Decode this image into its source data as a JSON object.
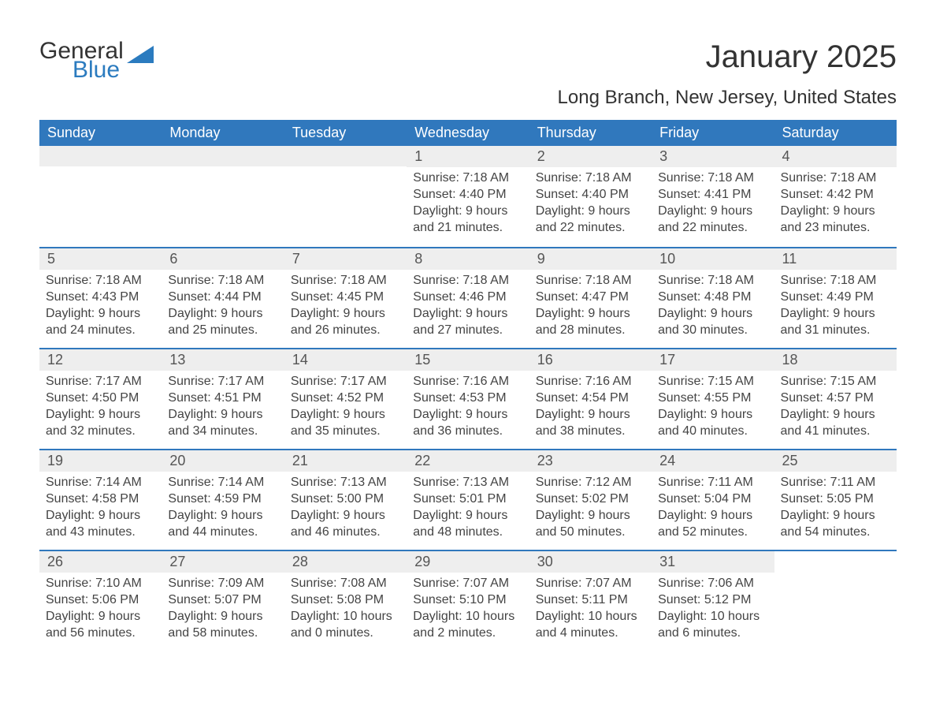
{
  "logo": {
    "text1": "General",
    "text2": "Blue"
  },
  "title": "January 2025",
  "subtitle": "Long Branch, New Jersey, United States",
  "colors": {
    "header_bg": "#3078bd",
    "header_text": "#ffffff",
    "daynum_bg": "#eeeeee",
    "rule": "#3078bd",
    "body_text": "#444444",
    "logo_accent": "#2b7bbf"
  },
  "typography": {
    "title_fontsize": 40,
    "subtitle_fontsize": 24,
    "dow_fontsize": 18,
    "body_fontsize": 16
  },
  "days_of_week": [
    "Sunday",
    "Monday",
    "Tuesday",
    "Wednesday",
    "Thursday",
    "Friday",
    "Saturday"
  ],
  "weeks": [
    [
      {
        "day": "",
        "lines": []
      },
      {
        "day": "",
        "lines": []
      },
      {
        "day": "",
        "lines": []
      },
      {
        "day": "1",
        "lines": [
          "Sunrise: 7:18 AM",
          "Sunset: 4:40 PM",
          "Daylight: 9 hours",
          "and 21 minutes."
        ]
      },
      {
        "day": "2",
        "lines": [
          "Sunrise: 7:18 AM",
          "Sunset: 4:40 PM",
          "Daylight: 9 hours",
          "and 22 minutes."
        ]
      },
      {
        "day": "3",
        "lines": [
          "Sunrise: 7:18 AM",
          "Sunset: 4:41 PM",
          "Daylight: 9 hours",
          "and 22 minutes."
        ]
      },
      {
        "day": "4",
        "lines": [
          "Sunrise: 7:18 AM",
          "Sunset: 4:42 PM",
          "Daylight: 9 hours",
          "and 23 minutes."
        ]
      }
    ],
    [
      {
        "day": "5",
        "lines": [
          "Sunrise: 7:18 AM",
          "Sunset: 4:43 PM",
          "Daylight: 9 hours",
          "and 24 minutes."
        ]
      },
      {
        "day": "6",
        "lines": [
          "Sunrise: 7:18 AM",
          "Sunset: 4:44 PM",
          "Daylight: 9 hours",
          "and 25 minutes."
        ]
      },
      {
        "day": "7",
        "lines": [
          "Sunrise: 7:18 AM",
          "Sunset: 4:45 PM",
          "Daylight: 9 hours",
          "and 26 minutes."
        ]
      },
      {
        "day": "8",
        "lines": [
          "Sunrise: 7:18 AM",
          "Sunset: 4:46 PM",
          "Daylight: 9 hours",
          "and 27 minutes."
        ]
      },
      {
        "day": "9",
        "lines": [
          "Sunrise: 7:18 AM",
          "Sunset: 4:47 PM",
          "Daylight: 9 hours",
          "and 28 minutes."
        ]
      },
      {
        "day": "10",
        "lines": [
          "Sunrise: 7:18 AM",
          "Sunset: 4:48 PM",
          "Daylight: 9 hours",
          "and 30 minutes."
        ]
      },
      {
        "day": "11",
        "lines": [
          "Sunrise: 7:18 AM",
          "Sunset: 4:49 PM",
          "Daylight: 9 hours",
          "and 31 minutes."
        ]
      }
    ],
    [
      {
        "day": "12",
        "lines": [
          "Sunrise: 7:17 AM",
          "Sunset: 4:50 PM",
          "Daylight: 9 hours",
          "and 32 minutes."
        ]
      },
      {
        "day": "13",
        "lines": [
          "Sunrise: 7:17 AM",
          "Sunset: 4:51 PM",
          "Daylight: 9 hours",
          "and 34 minutes."
        ]
      },
      {
        "day": "14",
        "lines": [
          "Sunrise: 7:17 AM",
          "Sunset: 4:52 PM",
          "Daylight: 9 hours",
          "and 35 minutes."
        ]
      },
      {
        "day": "15",
        "lines": [
          "Sunrise: 7:16 AM",
          "Sunset: 4:53 PM",
          "Daylight: 9 hours",
          "and 36 minutes."
        ]
      },
      {
        "day": "16",
        "lines": [
          "Sunrise: 7:16 AM",
          "Sunset: 4:54 PM",
          "Daylight: 9 hours",
          "and 38 minutes."
        ]
      },
      {
        "day": "17",
        "lines": [
          "Sunrise: 7:15 AM",
          "Sunset: 4:55 PM",
          "Daylight: 9 hours",
          "and 40 minutes."
        ]
      },
      {
        "day": "18",
        "lines": [
          "Sunrise: 7:15 AM",
          "Sunset: 4:57 PM",
          "Daylight: 9 hours",
          "and 41 minutes."
        ]
      }
    ],
    [
      {
        "day": "19",
        "lines": [
          "Sunrise: 7:14 AM",
          "Sunset: 4:58 PM",
          "Daylight: 9 hours",
          "and 43 minutes."
        ]
      },
      {
        "day": "20",
        "lines": [
          "Sunrise: 7:14 AM",
          "Sunset: 4:59 PM",
          "Daylight: 9 hours",
          "and 44 minutes."
        ]
      },
      {
        "day": "21",
        "lines": [
          "Sunrise: 7:13 AM",
          "Sunset: 5:00 PM",
          "Daylight: 9 hours",
          "and 46 minutes."
        ]
      },
      {
        "day": "22",
        "lines": [
          "Sunrise: 7:13 AM",
          "Sunset: 5:01 PM",
          "Daylight: 9 hours",
          "and 48 minutes."
        ]
      },
      {
        "day": "23",
        "lines": [
          "Sunrise: 7:12 AM",
          "Sunset: 5:02 PM",
          "Daylight: 9 hours",
          "and 50 minutes."
        ]
      },
      {
        "day": "24",
        "lines": [
          "Sunrise: 7:11 AM",
          "Sunset: 5:04 PM",
          "Daylight: 9 hours",
          "and 52 minutes."
        ]
      },
      {
        "day": "25",
        "lines": [
          "Sunrise: 7:11 AM",
          "Sunset: 5:05 PM",
          "Daylight: 9 hours",
          "and 54 minutes."
        ]
      }
    ],
    [
      {
        "day": "26",
        "lines": [
          "Sunrise: 7:10 AM",
          "Sunset: 5:06 PM",
          "Daylight: 9 hours",
          "and 56 minutes."
        ]
      },
      {
        "day": "27",
        "lines": [
          "Sunrise: 7:09 AM",
          "Sunset: 5:07 PM",
          "Daylight: 9 hours",
          "and 58 minutes."
        ]
      },
      {
        "day": "28",
        "lines": [
          "Sunrise: 7:08 AM",
          "Sunset: 5:08 PM",
          "Daylight: 10 hours",
          "and 0 minutes."
        ]
      },
      {
        "day": "29",
        "lines": [
          "Sunrise: 7:07 AM",
          "Sunset: 5:10 PM",
          "Daylight: 10 hours",
          "and 2 minutes."
        ]
      },
      {
        "day": "30",
        "lines": [
          "Sunrise: 7:07 AM",
          "Sunset: 5:11 PM",
          "Daylight: 10 hours",
          "and 4 minutes."
        ]
      },
      {
        "day": "31",
        "lines": [
          "Sunrise: 7:06 AM",
          "Sunset: 5:12 PM",
          "Daylight: 10 hours",
          "and 6 minutes."
        ]
      },
      {
        "day": "",
        "lines": []
      }
    ]
  ]
}
